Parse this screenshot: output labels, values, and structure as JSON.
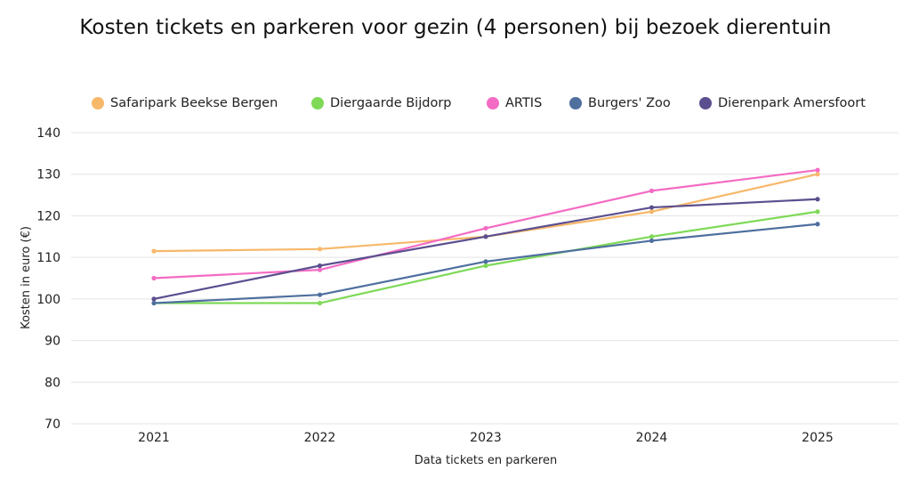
{
  "chart_data": {
    "type": "line",
    "title": "Kosten tickets en parkeren voor gezin (4 personen) bij bezoek dierentuin",
    "xlabel": "Data tickets en parkeren",
    "ylabel": "Kosten in euro (€)",
    "x": [
      "2021",
      "2022",
      "2023",
      "2024",
      "2025"
    ],
    "ylim": [
      70,
      140
    ],
    "yticks": [
      "140",
      "130",
      "120",
      "110",
      "100",
      "90",
      "80",
      "70"
    ],
    "grid": true,
    "legend_position": "top",
    "series": [
      {
        "name": "Safaripark Beekse Bergen",
        "color": "#f7b86a",
        "values": [
          111.5,
          112,
          115,
          121,
          130
        ]
      },
      {
        "name": "Diergaarde Bijdorp",
        "color": "#7ed957",
        "values": [
          99,
          99,
          108,
          115,
          121
        ]
      },
      {
        "name": "ARTIS",
        "color": "#f46bc4",
        "values": [
          105,
          107,
          117,
          126,
          131
        ]
      },
      {
        "name": "Burgers' Zoo",
        "color": "#4f6f9f",
        "values": [
          99,
          101,
          109,
          114,
          118
        ]
      },
      {
        "name": "Dierenpark Amersfoort",
        "color": "#5c4f8f",
        "values": [
          100,
          108,
          115,
          122,
          124
        ]
      }
    ]
  }
}
